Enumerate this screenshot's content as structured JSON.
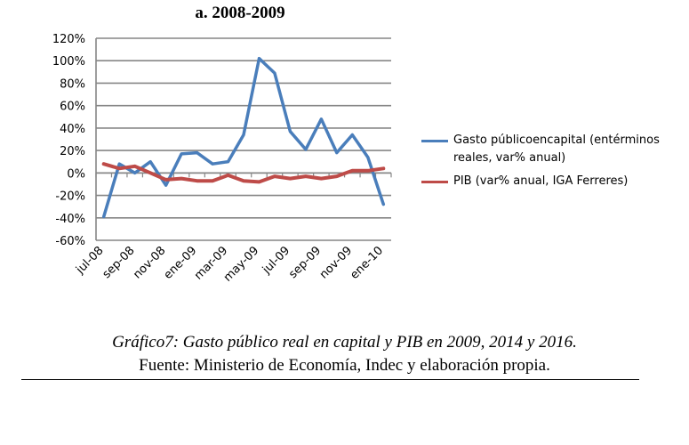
{
  "chart_data": {
    "type": "line",
    "title": "a. 2008-2009",
    "x": [
      "jul-08",
      "ago-08",
      "sep-08",
      "oct-08",
      "nov-08",
      "dic-08",
      "ene-09",
      "feb-09",
      "mar-09",
      "abr-09",
      "may-09",
      "jun-09",
      "jul-09",
      "ago-09",
      "sep-09",
      "oct-09",
      "nov-09",
      "dic-09",
      "ene-10"
    ],
    "x_tick_labels": [
      "jul-08",
      "sep-08",
      "nov-08",
      "ene-09",
      "mar-09",
      "may-09",
      "jul-09",
      "sep-09",
      "nov-09",
      "ene-10"
    ],
    "ylim": [
      -60,
      120
    ],
    "y_step": 20,
    "y_format": "percent",
    "grid": true,
    "legend_position": "right",
    "series": [
      {
        "name": "Gasto públicoencapital (entérminos reales, var% anual)",
        "color": "#4a7ebb",
        "values": [
          -39,
          8,
          0,
          10,
          -11,
          17,
          18,
          8,
          10,
          34,
          102,
          89,
          37,
          21,
          48,
          18,
          34,
          14,
          -28
        ]
      },
      {
        "name": "PIB (var% anual, IGA Ferreres)",
        "color": "#be4b48",
        "values": [
          8,
          4,
          6,
          0,
          -6,
          -5,
          -7,
          -7,
          -2,
          -7,
          -8,
          -3,
          -5,
          -3,
          -5,
          -3,
          2,
          2,
          4
        ]
      }
    ]
  },
  "caption": {
    "line1": "Gráfico7: Gasto público real en capital y PIB en 2009, 2014 y 2016.",
    "line2": "Fuente: Ministerio de Economía, Indec y elaboración propia."
  }
}
